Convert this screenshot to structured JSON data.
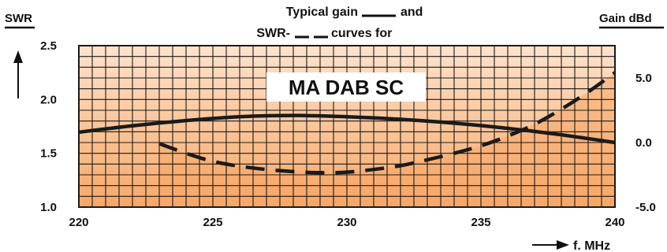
{
  "chart_data": {
    "type": "line",
    "title_line1": "Typical gain",
    "title_line1_suffix": "and",
    "title_line2": "SWR-",
    "title_line2_suffix": "curves for",
    "product_label": "MA DAB SC",
    "left_axis_label": "SWR",
    "right_axis_label": "Gain dBd",
    "x_axis_label": "f. MHz",
    "xlim": [
      220,
      240
    ],
    "ylim_left": [
      1.0,
      2.5
    ],
    "ylim_right": [
      -5.0,
      7.5
    ],
    "x_ticks": [
      "220",
      "225",
      "230",
      "235",
      "240"
    ],
    "left_ticks": [
      "1.0",
      "1.5",
      "2.0",
      "2.5"
    ],
    "right_ticks": [
      "-5.0",
      "0.0",
      "5.0"
    ],
    "grid": true,
    "colors": {
      "background_top": "#fde3cc",
      "background_bottom": "#f7a767",
      "grid": "#1a1a1a",
      "curve": "#1a1a1a",
      "product_box": "#ffffff"
    },
    "series": [
      {
        "axis": "right",
        "style": "solid",
        "x": [
          220,
          222,
          224,
          226,
          228,
          230,
          232,
          234,
          236,
          238,
          240
        ],
        "y": [
          0.8,
          1.3,
          1.7,
          2.0,
          2.1,
          2.0,
          1.8,
          1.5,
          1.1,
          0.6,
          0.0
        ]
      },
      {
        "axis": "left",
        "style": "dashed",
        "x": [
          223,
          224,
          225,
          226,
          227,
          228,
          229,
          230,
          231,
          232,
          233,
          234,
          235,
          236,
          237,
          238,
          239,
          240
        ],
        "y": [
          1.59,
          1.5,
          1.425,
          1.38,
          1.35,
          1.33,
          1.32,
          1.325,
          1.35,
          1.385,
          1.44,
          1.5,
          1.57,
          1.66,
          1.77,
          1.91,
          2.07,
          2.25
        ]
      }
    ]
  }
}
